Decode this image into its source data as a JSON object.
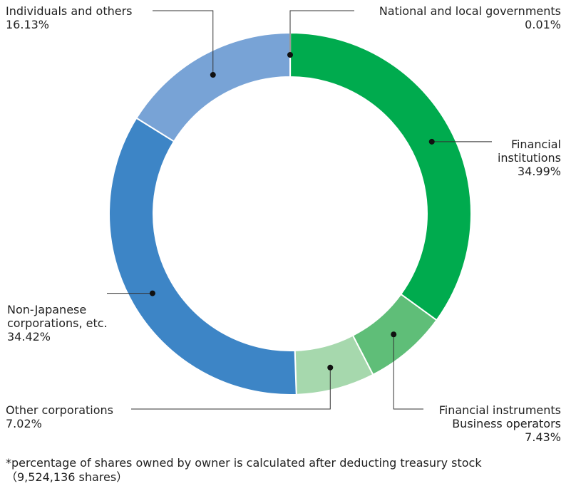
{
  "chart_data": {
    "type": "pie",
    "donut": true,
    "slices": [
      {
        "name": "National and local governments",
        "value": 0.01,
        "label": "0.01%",
        "color": "#00ab4e"
      },
      {
        "name": "Financial institutions",
        "value": 34.99,
        "label": "34.99%",
        "color": "#00ab4e"
      },
      {
        "name": "Financial instruments Business operators",
        "value": 7.43,
        "label": "7.43%",
        "color": "#5fbe78"
      },
      {
        "name": "Other corporations",
        "value": 7.02,
        "label": "7.02%",
        "color": "#a6d8ad"
      },
      {
        "name": "Non-Japanese corporations, etc.",
        "value": 34.42,
        "label": "34.42%",
        "color": "#3d85c6"
      },
      {
        "name": "Individuals and others",
        "value": 16.13,
        "label": "16.13%",
        "color": "#78a3d6"
      }
    ]
  },
  "labels": {
    "gov": {
      "line1": "National and local governments",
      "pct": "0.01%"
    },
    "fin": {
      "line1": "Financial",
      "line2": "institutions",
      "pct": "34.99%"
    },
    "fib": {
      "line1": "Financial instruments",
      "line2": "Business operators",
      "pct": "7.43%"
    },
    "oth": {
      "line1": "Other corporations",
      "pct": "7.02%"
    },
    "nonjp": {
      "line1": "Non-Japanese",
      "line2": "corporations, etc.",
      "pct": "34.42%"
    },
    "ind": {
      "line1": "Individuals and others",
      "pct": "16.13%"
    }
  },
  "footnote": {
    "line1": "*percentage of shares owned by owner is calculated after deducting treasury stock",
    "line2": "（9,524,136 shares）"
  }
}
